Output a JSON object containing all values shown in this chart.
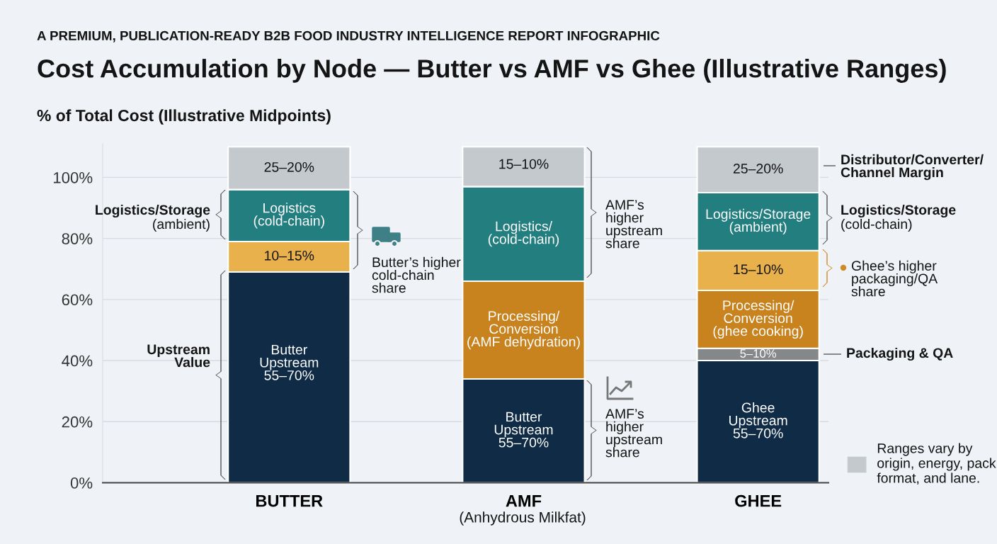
{
  "chart_data": {
    "type": "bar",
    "stacked": true,
    "subtitle": "A PREMIUM, PUBLICATION-READY B2B FOOD INDUSTRY INTELLIGENCE REPORT INFOGRAPHIC",
    "title": "Cost Accumulation by Node — Butter vs AMF vs Ghee (Illustrative Ranges)",
    "ylabel": "% of Total Cost (Illustrative Midpoints)",
    "categories": [
      "BUTTER",
      "AMF",
      "GHEE"
    ],
    "ylim": [
      0,
      111
    ],
    "yticks": [
      {
        "value": 0,
        "label": "0%"
      },
      {
        "value": 20,
        "label": "20%"
      },
      {
        "value": 40,
        "label": "40%"
      },
      {
        "value": 60,
        "label": "60%"
      },
      {
        "value": 80,
        "label": "80%"
      },
      {
        "value": 100,
        "label": "100%"
      }
    ],
    "grid": "y",
    "legend": "bottom right",
    "series": [
      {
        "color": "#0f2b45",
        "values": [
          69,
          34,
          40
        ]
      },
      {
        "color": "#85888b",
        "values": [
          null,
          null,
          4
        ]
      },
      {
        "color": "#c8821e",
        "values": [
          null,
          32,
          19
        ]
      },
      {
        "color": "#e8b14c",
        "values": [
          10,
          null,
          13
        ]
      },
      {
        "color": "#237e80",
        "values": [
          17,
          31,
          19
        ]
      },
      {
        "name": "Ranges vary by\norigin, energy, pack\nformat, and lane.",
        "color": "#c4c9ce",
        "values": [
          14,
          13,
          15
        ]
      }
    ],
    "annotations": [
      "Logistics/Storage\n(ambient)",
      "Upstream\nValue",
      "Butter’s higher\ncold-chain\nshare",
      "AMF’s\nhigher\nupstream\nshare",
      "AMF’s\nhigher\nupstream\nshare",
      "Distributor/Converter/\nChannel Margin",
      "Logistics/Storage\n(cold-chain)",
      "Ghee’s higher\npackaging/QA\nshare",
      "Packaging & QA",
      "(Anhydrous Milkfat)",
      "Butter\nUpstream\n55–70%",
      "10–15%",
      "Logistics\n(cold-chain)",
      "25–20%",
      "Butter\nUpstream\n55–70%",
      "Processing/\nConversion\n(AMF dehydration)",
      "Logistics/\n(cold-chain)",
      "15–10%",
      "Ghee\nUpstream\n55–70%",
      "5–10%",
      "Processing/\nConversion\n(ghee cooking)",
      "15–10%",
      "Logistics/Storage\n(ambient)",
      "25–20%"
    ]
  }
}
